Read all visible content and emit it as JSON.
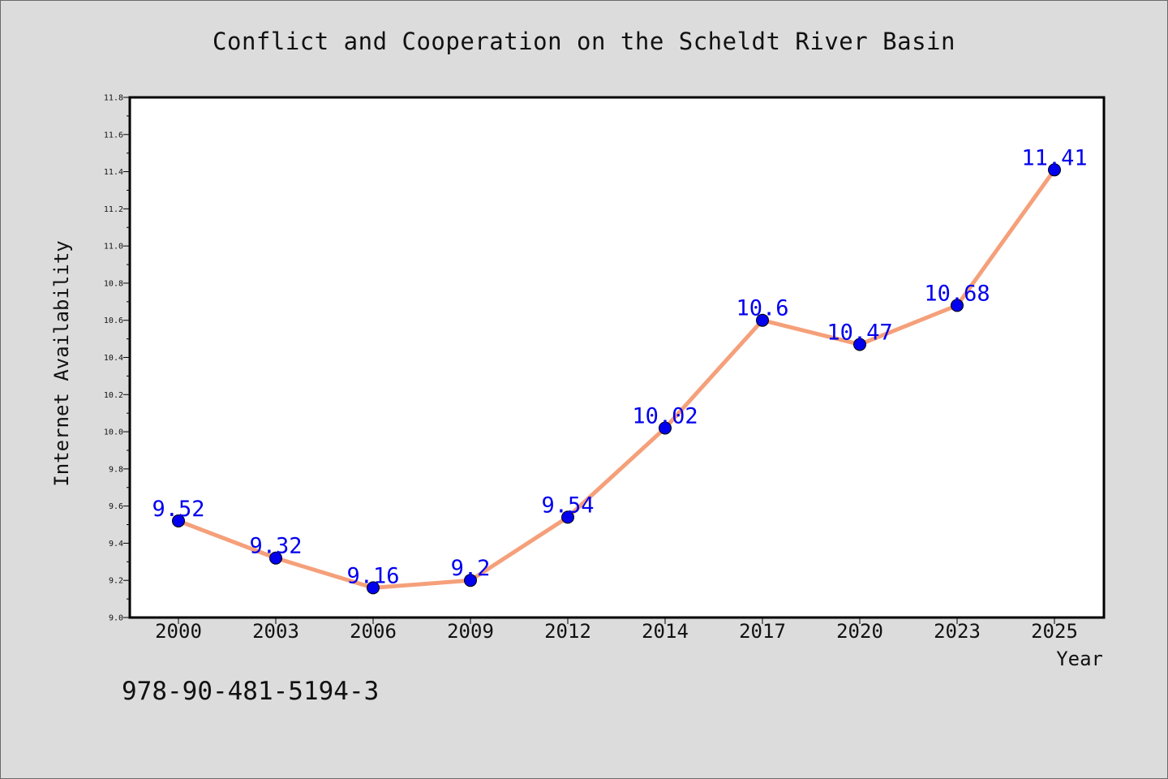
{
  "chart_data": {
    "type": "line",
    "title": "Conflict and Cooperation on the Scheldt River Basin",
    "xlabel": "Year",
    "ylabel": "Internet Availability",
    "categories": [
      "2000",
      "2003",
      "2006",
      "2009",
      "2012",
      "2014",
      "2017",
      "2020",
      "2023",
      "2025"
    ],
    "series": [
      {
        "values": [
          9.52,
          9.32,
          9.16,
          9.2,
          9.54,
          10.02,
          10.6,
          10.47,
          10.68,
          11.41
        ],
        "labels": [
          "9.52",
          "9.32",
          "9.16",
          "9.2",
          "9.54",
          "10.02",
          "10.6",
          "10.47",
          "10.68",
          "11.41"
        ]
      }
    ],
    "ylim": [
      9.0,
      11.8
    ],
    "y_ticks": [
      "9.0",
      "9.2",
      "9.4",
      "9.6",
      "9.8",
      "10.0",
      "10.2",
      "10.4",
      "10.6",
      "10.8",
      "11.0",
      "11.2",
      "11.4",
      "11.6",
      "11.8"
    ],
    "grid": false,
    "line_color": "#f5a07a",
    "marker_color": "#0000ee",
    "label_color": "#0000ee"
  },
  "footer": {
    "isbn": "978-90-481-5194-3"
  }
}
